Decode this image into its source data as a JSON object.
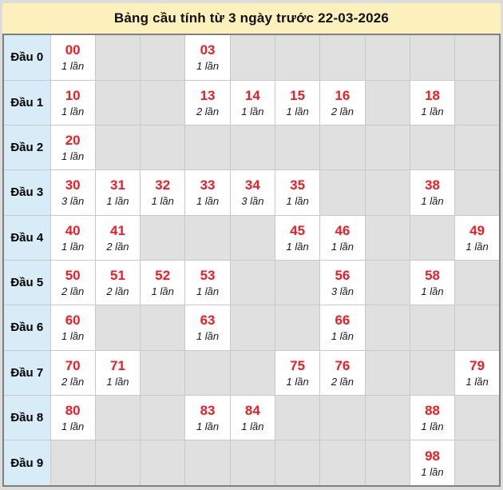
{
  "title": "Bảng cầu tính từ 3 ngày trước 22-03-2026",
  "colors": {
    "title_bg": "#fcf0bc",
    "title_text": "#111111",
    "label_bg": "#d7ecf7",
    "empty_cell_bg": "#e0e0e1",
    "filled_cell_bg": "#ffffff",
    "number_red": "#ee1c25",
    "count_text": "#1a1a1a",
    "outer_border": "#7f7f7f",
    "grid_border": "#c9c9c9",
    "page_bg": "#dcdcdc"
  },
  "rows": [
    {
      "label": "Đầu 0",
      "cells": [
        {
          "num": "00",
          "count": "1 lần"
        },
        null,
        null,
        {
          "num": "03",
          "count": "1 lần"
        },
        null,
        null,
        null,
        null,
        null,
        null
      ]
    },
    {
      "label": "Đầu 1",
      "cells": [
        {
          "num": "10",
          "count": "1 lần"
        },
        null,
        null,
        {
          "num": "13",
          "count": "2 lần"
        },
        {
          "num": "14",
          "count": "1 lần"
        },
        {
          "num": "15",
          "count": "1 lần"
        },
        {
          "num": "16",
          "count": "2 lần"
        },
        null,
        {
          "num": "18",
          "count": "1 lần"
        },
        null
      ]
    },
    {
      "label": "Đầu 2",
      "cells": [
        {
          "num": "20",
          "count": "1 lần"
        },
        null,
        null,
        null,
        null,
        null,
        null,
        null,
        null,
        null
      ]
    },
    {
      "label": "Đầu 3",
      "cells": [
        {
          "num": "30",
          "count": "3 lần"
        },
        {
          "num": "31",
          "count": "1 lần"
        },
        {
          "num": "32",
          "count": "1 lần"
        },
        {
          "num": "33",
          "count": "1 lần"
        },
        {
          "num": "34",
          "count": "3 lần"
        },
        {
          "num": "35",
          "count": "1 lần"
        },
        null,
        null,
        {
          "num": "38",
          "count": "1 lần"
        },
        null
      ]
    },
    {
      "label": "Đầu 4",
      "cells": [
        {
          "num": "40",
          "count": "1 lần"
        },
        {
          "num": "41",
          "count": "2 lần"
        },
        null,
        null,
        null,
        {
          "num": "45",
          "count": "1 lần"
        },
        {
          "num": "46",
          "count": "1 lần"
        },
        null,
        null,
        {
          "num": "49",
          "count": "1 lần"
        }
      ]
    },
    {
      "label": "Đầu 5",
      "cells": [
        {
          "num": "50",
          "count": "2 lần"
        },
        {
          "num": "51",
          "count": "2 lần"
        },
        {
          "num": "52",
          "count": "1 lần"
        },
        {
          "num": "53",
          "count": "1 lần"
        },
        null,
        null,
        {
          "num": "56",
          "count": "3 lần"
        },
        null,
        {
          "num": "58",
          "count": "1 lần"
        },
        null
      ]
    },
    {
      "label": "Đầu 6",
      "cells": [
        {
          "num": "60",
          "count": "1 lần"
        },
        null,
        null,
        {
          "num": "63",
          "count": "1 lần"
        },
        null,
        null,
        {
          "num": "66",
          "count": "1 lần"
        },
        null,
        null,
        null
      ]
    },
    {
      "label": "Đầu 7",
      "cells": [
        {
          "num": "70",
          "count": "2 lần"
        },
        {
          "num": "71",
          "count": "1 lần"
        },
        null,
        null,
        null,
        {
          "num": "75",
          "count": "1 lần"
        },
        {
          "num": "76",
          "count": "2 lần"
        },
        null,
        null,
        {
          "num": "79",
          "count": "1 lần"
        }
      ]
    },
    {
      "label": "Đầu 8",
      "cells": [
        {
          "num": "80",
          "count": "1 lần"
        },
        null,
        null,
        {
          "num": "83",
          "count": "1 lần"
        },
        {
          "num": "84",
          "count": "1 lần"
        },
        null,
        null,
        null,
        {
          "num": "88",
          "count": "1 lần"
        },
        null
      ]
    },
    {
      "label": "Đầu 9",
      "cells": [
        null,
        null,
        null,
        null,
        null,
        null,
        null,
        null,
        {
          "num": "98",
          "count": "1 lần"
        },
        null
      ]
    }
  ]
}
